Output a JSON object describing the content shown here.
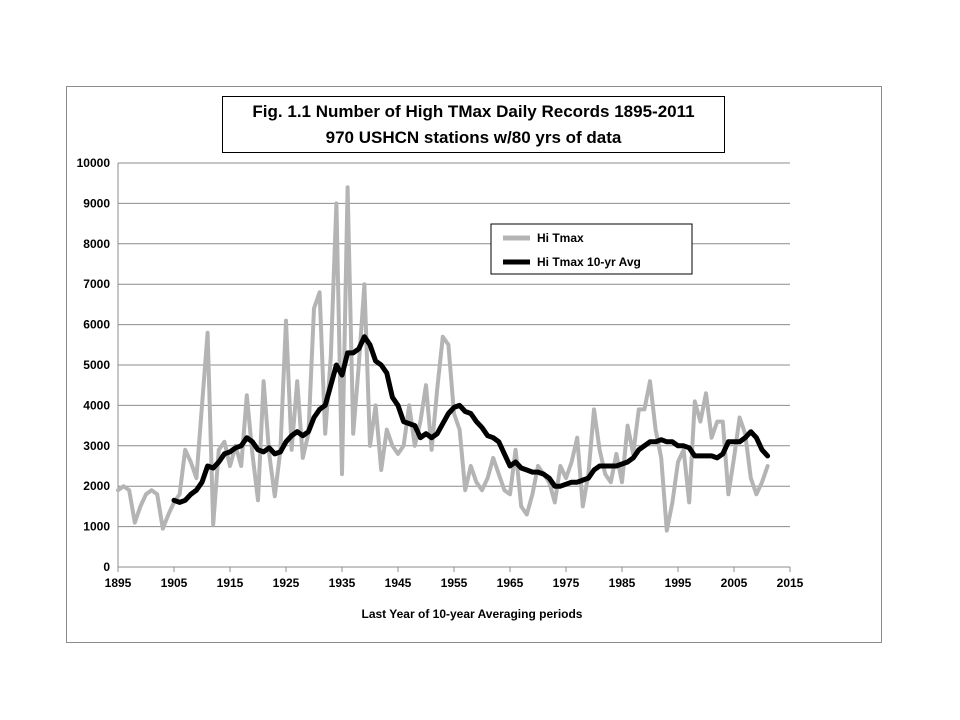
{
  "chart_data": {
    "type": "line",
    "title": "Fig. 1.1 Number of High TMax Daily Records 1895-2011",
    "subtitle": "970 USHCN stations w/80 yrs of data",
    "xlabel": "Last Year of 10-year Averaging periods",
    "ylabel": "",
    "xlim": [
      1895,
      2015
    ],
    "ylim": [
      0,
      10000
    ],
    "x_ticks": [
      1895,
      1905,
      1915,
      1925,
      1935,
      1945,
      1955,
      1965,
      1975,
      1985,
      1995,
      2005,
      2015
    ],
    "y_ticks": [
      0,
      1000,
      2000,
      3000,
      4000,
      5000,
      6000,
      7000,
      8000,
      9000,
      10000
    ],
    "grid": "horizontal",
    "legend": "upper-right-inside",
    "series": [
      {
        "name": "Hi Tmax",
        "color": "#b4b4b4",
        "x": [
          1895,
          1896,
          1897,
          1898,
          1899,
          1900,
          1901,
          1902,
          1903,
          1904,
          1905,
          1906,
          1907,
          1908,
          1909,
          1910,
          1911,
          1912,
          1913,
          1914,
          1915,
          1916,
          1917,
          1918,
          1919,
          1920,
          1921,
          1922,
          1923,
          1924,
          1925,
          1926,
          1927,
          1928,
          1929,
          1930,
          1931,
          1932,
          1933,
          1934,
          1935,
          1936,
          1937,
          1938,
          1939,
          1940,
          1941,
          1942,
          1943,
          1944,
          1945,
          1946,
          1947,
          1948,
          1949,
          1950,
          1951,
          1952,
          1953,
          1954,
          1955,
          1956,
          1957,
          1958,
          1959,
          1960,
          1961,
          1962,
          1963,
          1964,
          1965,
          1966,
          1967,
          1968,
          1969,
          1970,
          1971,
          1972,
          1973,
          1974,
          1975,
          1976,
          1977,
          1978,
          1979,
          1980,
          1981,
          1982,
          1983,
          1984,
          1985,
          1986,
          1987,
          1988,
          1989,
          1990,
          1991,
          1992,
          1993,
          1994,
          1995,
          1996,
          1997,
          1998,
          1999,
          2000,
          2001,
          2002,
          2003,
          2004,
          2005,
          2006,
          2007,
          2008,
          2009,
          2010,
          2011
        ],
        "values": [
          1900,
          2000,
          1900,
          1100,
          1500,
          1800,
          1900,
          1800,
          950,
          1300,
          1600,
          1800,
          2900,
          2600,
          2200,
          4000,
          5800,
          1050,
          2900,
          3100,
          2500,
          3000,
          2500,
          4250,
          2800,
          1650,
          4600,
          2800,
          1750,
          2900,
          6100,
          2900,
          4600,
          2700,
          3300,
          6400,
          6800,
          3300,
          5200,
          9000,
          2300,
          9400,
          3300,
          5000,
          7000,
          3000,
          4000,
          2400,
          3400,
          3000,
          2800,
          3000,
          4000,
          3000,
          3600,
          4500,
          2900,
          4400,
          5700,
          5500,
          3800,
          3400,
          1900,
          2500,
          2100,
          1900,
          2200,
          2700,
          2300,
          1900,
          1800,
          2900,
          1500,
          1300,
          1800,
          2500,
          2300,
          2100,
          1600,
          2500,
          2200,
          2600,
          3200,
          1500,
          2300,
          3900,
          2900,
          2300,
          2100,
          2800,
          2100,
          3500,
          2800,
          3900,
          3900,
          4600,
          3400,
          2700,
          900,
          1600,
          2600,
          2900,
          1600,
          4100,
          3600,
          4300,
          3200,
          3600,
          3600,
          1800,
          2700,
          3700,
          3300,
          2200,
          1800,
          2100,
          2500
        ]
      },
      {
        "name": "Hi Tmax 10-yr Avg",
        "color": "#000000",
        "x": [
          1905,
          1906,
          1907,
          1908,
          1909,
          1910,
          1911,
          1912,
          1913,
          1914,
          1915,
          1916,
          1917,
          1918,
          1919,
          1920,
          1921,
          1922,
          1923,
          1924,
          1925,
          1926,
          1927,
          1928,
          1929,
          1930,
          1931,
          1932,
          1933,
          1934,
          1935,
          1936,
          1937,
          1938,
          1939,
          1940,
          1941,
          1942,
          1943,
          1944,
          1945,
          1946,
          1947,
          1948,
          1949,
          1950,
          1951,
          1952,
          1953,
          1954,
          1955,
          1956,
          1957,
          1958,
          1959,
          1960,
          1961,
          1962,
          1963,
          1964,
          1965,
          1966,
          1967,
          1968,
          1969,
          1970,
          1971,
          1972,
          1973,
          1974,
          1975,
          1976,
          1977,
          1978,
          1979,
          1980,
          1981,
          1982,
          1983,
          1984,
          1985,
          1986,
          1987,
          1988,
          1989,
          1990,
          1991,
          1992,
          1993,
          1994,
          1995,
          1996,
          1997,
          1998,
          1999,
          2000,
          2001,
          2002,
          2003,
          2004,
          2005,
          2006,
          2007,
          2008,
          2009,
          2010,
          2011
        ],
        "values": [
          1650,
          1600,
          1650,
          1800,
          1900,
          2100,
          2500,
          2450,
          2600,
          2800,
          2850,
          2950,
          3000,
          3200,
          3100,
          2900,
          2850,
          2950,
          2800,
          2850,
          3100,
          3250,
          3350,
          3250,
          3350,
          3700,
          3900,
          4000,
          4500,
          5000,
          4750,
          5300,
          5300,
          5400,
          5700,
          5500,
          5100,
          5000,
          4800,
          4200,
          4000,
          3600,
          3550,
          3500,
          3200,
          3300,
          3200,
          3300,
          3550,
          3800,
          3950,
          4000,
          3850,
          3800,
          3600,
          3450,
          3250,
          3200,
          3100,
          2800,
          2500,
          2600,
          2450,
          2400,
          2350,
          2350,
          2300,
          2200,
          2000,
          2000,
          2050,
          2100,
          2100,
          2150,
          2200,
          2400,
          2500,
          2500,
          2500,
          2500,
          2550,
          2600,
          2700,
          2900,
          3000,
          3100,
          3100,
          3150,
          3100,
          3100,
          3000,
          3000,
          2950,
          2750,
          2750,
          2750,
          2750,
          2700,
          2800,
          3100,
          3100,
          3100,
          3200,
          3350,
          3200,
          2900,
          2750
        ]
      }
    ]
  }
}
